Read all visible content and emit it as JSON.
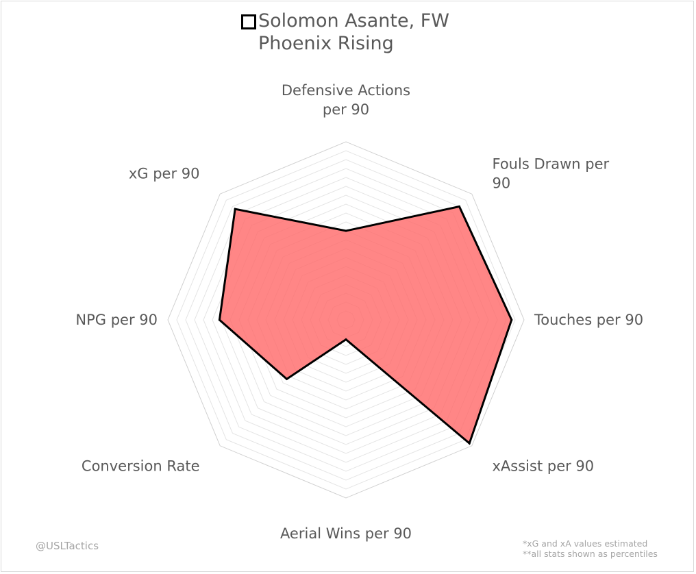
{
  "legend": {
    "line1": "Solomon Asante, FW",
    "line2": "Phoenix Rising"
  },
  "credit": "@USLTactics",
  "notes": [
    "*xG and xA values estimated",
    "**all stats shown as percentiles"
  ],
  "colors": {
    "fill": "#ff6b6b",
    "outline": "#000000",
    "grid": "#d9d9d9",
    "text": "#595959"
  },
  "chart_data": {
    "type": "radar",
    "title": "",
    "rlim": [
      0,
      100
    ],
    "grid_rings": 20,
    "categories": [
      "Defensive Actions per 90",
      "Fouls Drawn per 90",
      "Touches per 90",
      "xAssist per 90",
      "Aerial Wins per 90",
      "Conversion Rate",
      "NPG per 90",
      "xG per 90"
    ],
    "category_label_lines": [
      [
        "Defensive Actions",
        "per 90"
      ],
      [
        "Fouls Drawn per",
        "90"
      ],
      [
        "Touches per 90"
      ],
      [
        "xAssist per 90"
      ],
      [
        "Aerial Wins per 90"
      ],
      [
        "Conversion Rate"
      ],
      [
        "NPG per 90"
      ],
      [
        "xG per 90"
      ]
    ],
    "series": [
      {
        "name": "Solomon Asante, FW",
        "values": [
          50,
          90,
          93,
          98,
          11,
          47,
          71,
          88
        ]
      }
    ]
  }
}
